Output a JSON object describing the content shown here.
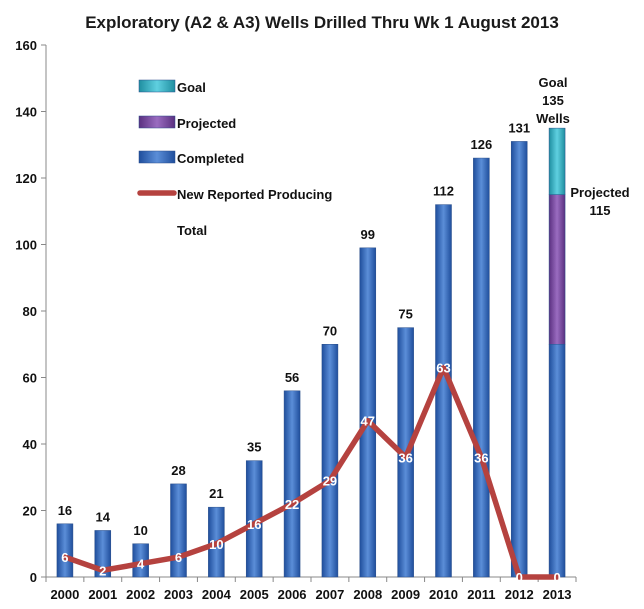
{
  "chart_data": {
    "type": "bar",
    "title": "Exploratory (A2 & A3) Wells Drilled Thru Wk 1 August 2013",
    "xlabel": "",
    "ylabel": "",
    "ylim": [
      0,
      160
    ],
    "yticks": [
      0,
      20,
      40,
      60,
      80,
      100,
      120,
      140,
      160
    ],
    "grid": false,
    "legend_position": "top-left",
    "categories": [
      "2000",
      "2001",
      "2002",
      "2003",
      "2004",
      "2005",
      "2006",
      "2007",
      "2008",
      "2009",
      "2010",
      "2011",
      "2012",
      "2013"
    ],
    "series": [
      {
        "name": "Completed",
        "type": "bar",
        "color": "#3a6fc0",
        "values": [
          16,
          14,
          10,
          28,
          21,
          35,
          56,
          70,
          99,
          75,
          112,
          126,
          131,
          70
        ]
      },
      {
        "name": "Projected",
        "type": "bar-stacked",
        "color": "#7b4fa0",
        "values": [
          null,
          null,
          null,
          null,
          null,
          null,
          null,
          null,
          null,
          null,
          null,
          null,
          null,
          45
        ]
      },
      {
        "name": "Goal",
        "type": "bar-stacked",
        "color": "#3cb4c8",
        "values": [
          null,
          null,
          null,
          null,
          null,
          null,
          null,
          null,
          null,
          null,
          null,
          null,
          null,
          20
        ]
      },
      {
        "name": "New Reported Producing",
        "type": "line",
        "color": "#b5423f",
        "values": [
          6,
          2,
          4,
          6,
          10,
          16,
          22,
          29,
          47,
          36,
          63,
          36,
          0,
          0
        ]
      }
    ],
    "bar_labels": [
      "16",
      "14",
      "10",
      "28",
      "21",
      "35",
      "56",
      "70",
      "99",
      "75",
      "112",
      "126",
      "131",
      ""
    ],
    "line_labels": [
      "6",
      "2",
      "4",
      "6",
      "10",
      "16",
      "22",
      "29",
      "47",
      "36",
      "63",
      "36",
      "0",
      "0"
    ],
    "legend_extra": "Total",
    "annotations": {
      "goal": [
        "Goal",
        "135",
        "Wells"
      ],
      "projected": [
        "Projected",
        "115"
      ]
    }
  }
}
